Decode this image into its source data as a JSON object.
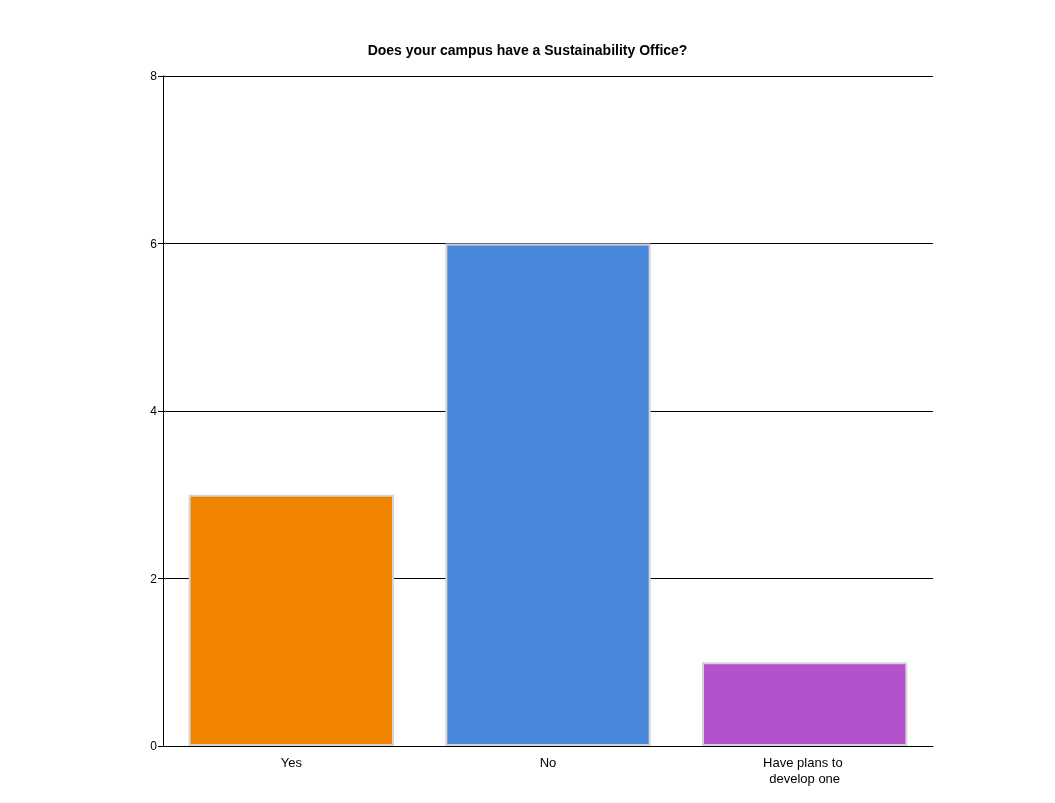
{
  "chart_data": {
    "type": "bar",
    "title": "Does your campus have a Sustainability Office?",
    "categories": [
      "Yes",
      "No",
      "Have plans to develop one"
    ],
    "values": [
      3,
      6,
      1
    ],
    "colors": [
      "#f08400",
      "#4a88de",
      "#b451cc"
    ],
    "ylim": [
      0,
      8
    ],
    "yticks": [
      0,
      2,
      4,
      6,
      8
    ],
    "grid": "y"
  }
}
